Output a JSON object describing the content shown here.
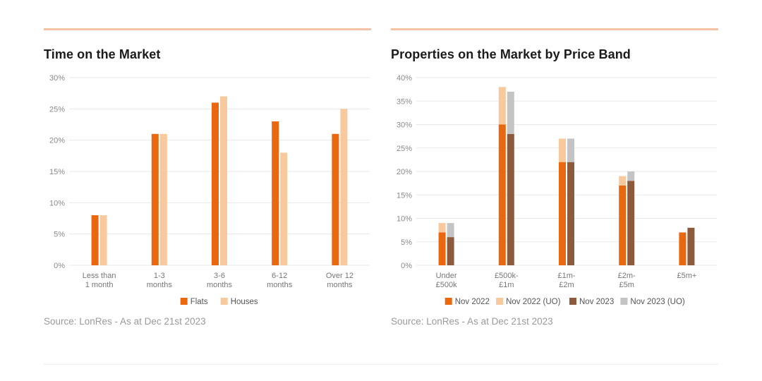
{
  "charts": [
    {
      "panel_title": "Time on the Market",
      "source": "Source: LonRes - As at Dec 21st 2023",
      "chart_data": {
        "type": "bar",
        "stacked": false,
        "title": "Time on the Market",
        "ylim": [
          0,
          30
        ],
        "yticks": [
          0,
          5,
          10,
          15,
          20,
          25,
          30
        ],
        "yticklabels": [
          "0%",
          "5%",
          "10%",
          "15%",
          "20%",
          "25%",
          "30%"
        ],
        "categories": [
          [
            "Less than",
            "1 month"
          ],
          [
            "1-3",
            "months"
          ],
          [
            "3-6",
            "months"
          ],
          [
            "6-12",
            "months"
          ],
          [
            "Over 12",
            "months"
          ]
        ],
        "series": [
          {
            "name": "Flats",
            "color": "#e8670f",
            "values": [
              8,
              21,
              26,
              23,
              21
            ]
          },
          {
            "name": "Houses",
            "color": "#f8c99d",
            "values": [
              8,
              21,
              27,
              18,
              25
            ]
          }
        ],
        "legend": "bottom",
        "grid": true
      }
    },
    {
      "panel_title": "Properties on the Market by Price Band",
      "source": "Source: LonRes - As at Dec 21st 2023",
      "chart_data": {
        "type": "bar",
        "stacked": true,
        "title": "Properties on the Market by Price Band",
        "ylim": [
          0,
          40
        ],
        "yticks": [
          0,
          5,
          10,
          15,
          20,
          25,
          30,
          35,
          40
        ],
        "yticklabels": [
          "0%",
          "5%",
          "10%",
          "15%",
          "20%",
          "25%",
          "30%",
          "35%",
          "40%"
        ],
        "categories": [
          [
            "Under",
            "£500k"
          ],
          [
            "£500k-",
            "£1m"
          ],
          [
            "£1m-",
            "£2m"
          ],
          [
            "£2m-",
            "£5m"
          ],
          [
            "£5m+"
          ]
        ],
        "groups": [
          {
            "name": "Nov 2022",
            "segments": [
              {
                "name": "Nov 2022",
                "color": "#e8670f",
                "values": [
                  7,
                  30,
                  22,
                  17,
                  7
                ]
              },
              {
                "name": "Nov 2022 (UO)",
                "color": "#f8c99d",
                "values": [
                  2,
                  8,
                  5,
                  2,
                  0
                ]
              }
            ]
          },
          {
            "name": "Nov 2023",
            "segments": [
              {
                "name": "Nov 2023",
                "color": "#8c5a3c",
                "values": [
                  6,
                  28,
                  22,
                  18,
                  8
                ]
              },
              {
                "name": "Nov 2023 (UO)",
                "color": "#c4c4c4",
                "values": [
                  3,
                  9,
                  5,
                  2,
                  0
                ]
              }
            ]
          }
        ],
        "legend_entries": [
          {
            "name": "Nov 2022",
            "color": "#e8670f"
          },
          {
            "name": "Nov 2022 (UO)",
            "color": "#f8c99d"
          },
          {
            "name": "Nov 2023",
            "color": "#8c5a3c"
          },
          {
            "name": "Nov 2023 (UO)",
            "color": "#c4c4c4"
          }
        ],
        "legend": "bottom",
        "grid": true
      }
    }
  ]
}
